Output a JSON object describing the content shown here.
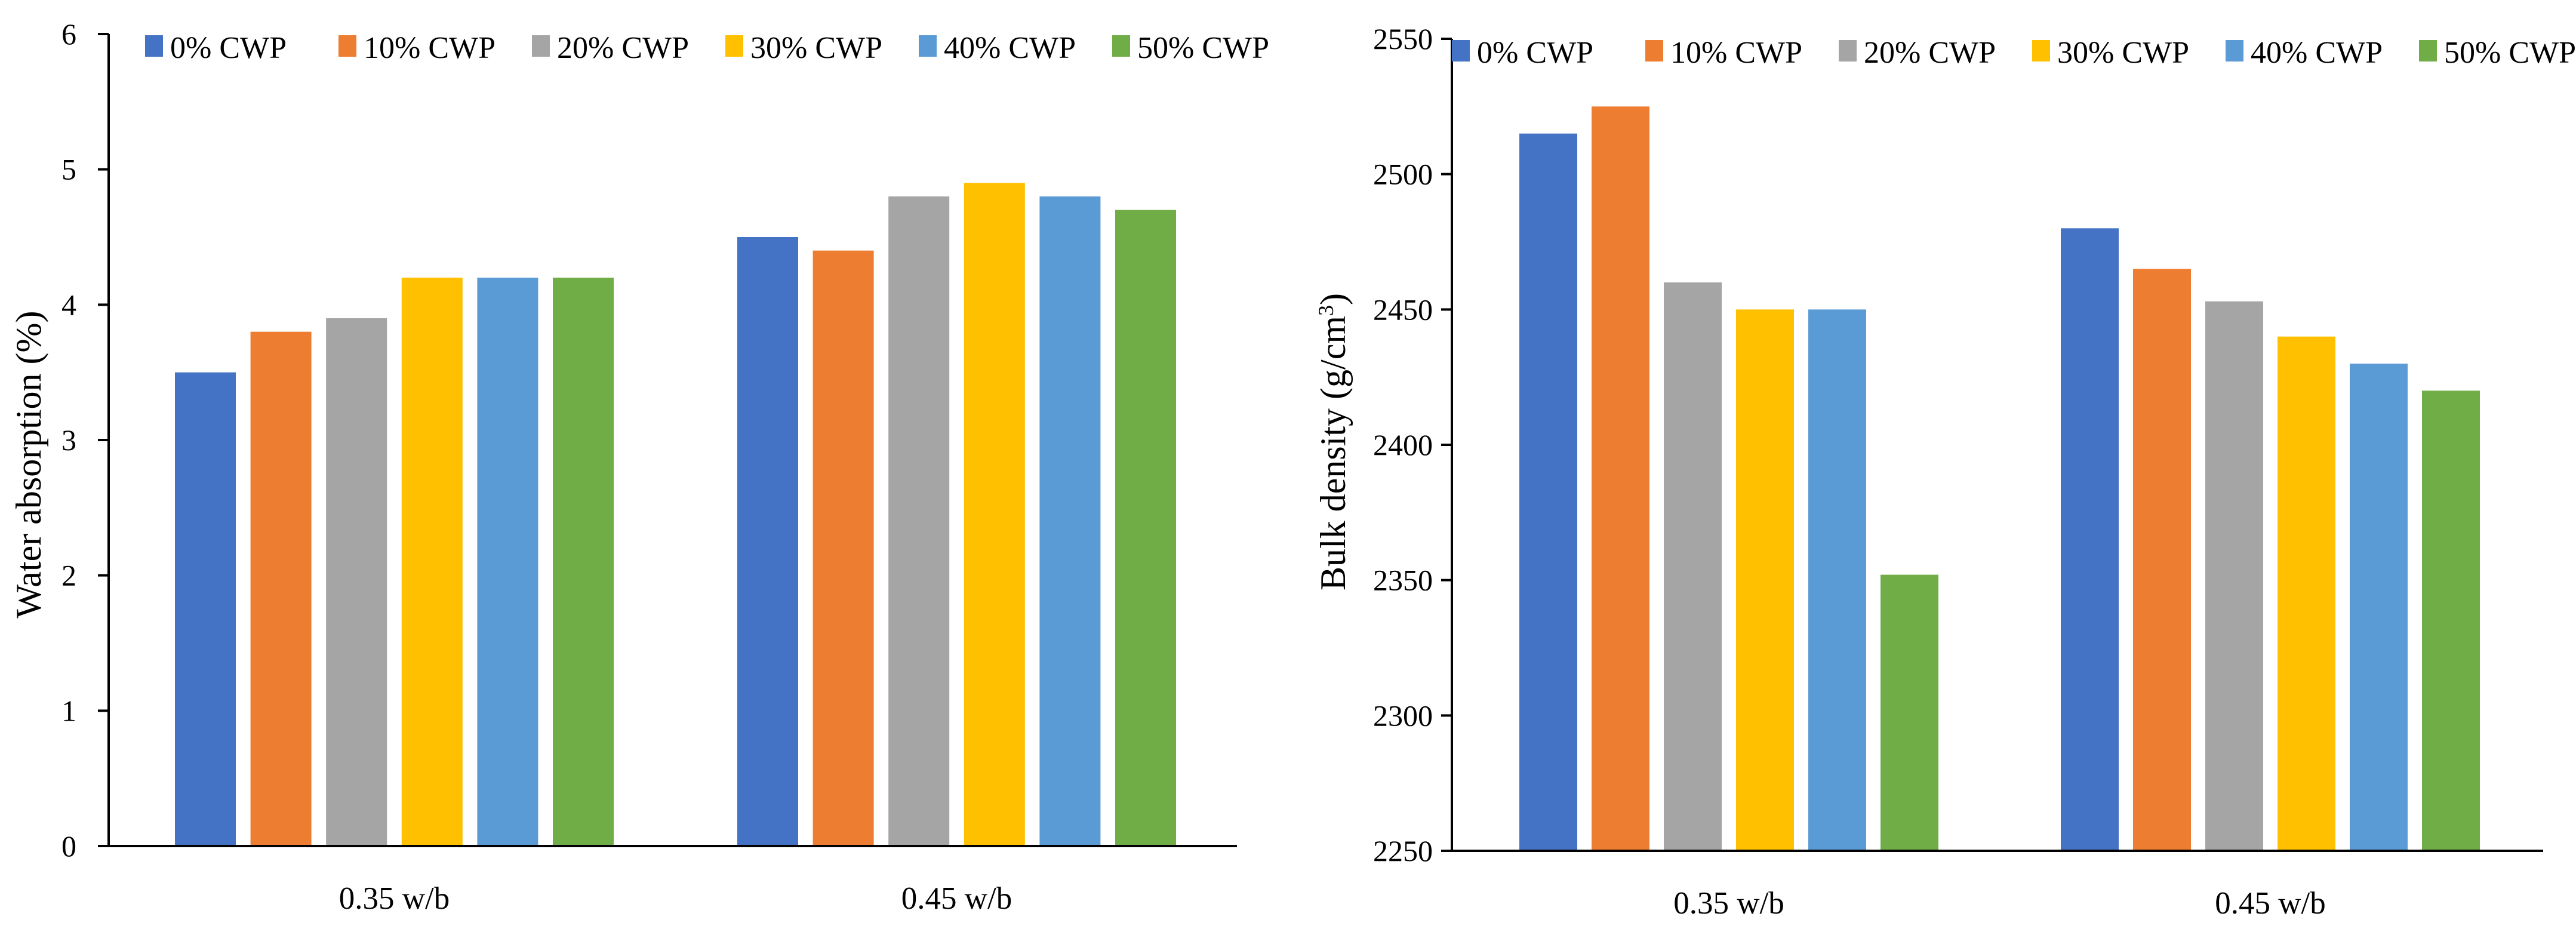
{
  "chart_data": [
    {
      "type": "bar",
      "title": "",
      "xlabel": "",
      "ylabel": "Water absorption (%)",
      "ylim": [
        0,
        6
      ],
      "yticks": [
        "0",
        "1",
        "2",
        "3",
        "4",
        "5",
        "6"
      ],
      "grid": false,
      "legend_position": "top",
      "categories": [
        "0.35 w/b",
        "0.45 w/b"
      ],
      "series": [
        {
          "name": "0% CWP",
          "color": "#4472C4",
          "values": [
            3.5,
            4.5
          ]
        },
        {
          "name": "10% CWP",
          "color": "#ED7D31",
          "values": [
            3.8,
            4.4
          ]
        },
        {
          "name": "20% CWP",
          "color": "#A5A5A5",
          "values": [
            3.9,
            4.8
          ]
        },
        {
          "name": "30% CWP",
          "color": "#FFC000",
          "values": [
            4.2,
            4.9
          ]
        },
        {
          "name": "40% CWP",
          "color": "#5B9BD5",
          "values": [
            4.2,
            4.8
          ]
        },
        {
          "name": "50% CWP",
          "color": "#70AD47",
          "values": [
            4.2,
            4.7
          ]
        }
      ]
    },
    {
      "type": "bar",
      "title": "",
      "xlabel": "",
      "ylabel_main": "Bulk density (g/cm",
      "ylabel_sup": "3",
      "ylabel_close": ")",
      "ylim": [
        2250,
        2550
      ],
      "yticks": [
        "2250",
        "2300",
        "2350",
        "2400",
        "2450",
        "2500",
        "2550"
      ],
      "grid": false,
      "legend_position": "top",
      "categories": [
        "0.35 w/b",
        "0.45 w/b"
      ],
      "series": [
        {
          "name": "0% CWP",
          "color": "#4472C4",
          "values": [
            2515,
            2480
          ]
        },
        {
          "name": "10% CWP",
          "color": "#ED7D31",
          "values": [
            2525,
            2465
          ]
        },
        {
          "name": "20% CWP",
          "color": "#A5A5A5",
          "values": [
            2460,
            2453
          ]
        },
        {
          "name": "30% CWP",
          "color": "#FFC000",
          "values": [
            2450,
            2440
          ]
        },
        {
          "name": "40% CWP",
          "color": "#5B9BD5",
          "values": [
            2450,
            2430
          ]
        },
        {
          "name": "50% CWP",
          "color": "#70AD47",
          "values": [
            2352,
            2420
          ]
        }
      ]
    }
  ]
}
